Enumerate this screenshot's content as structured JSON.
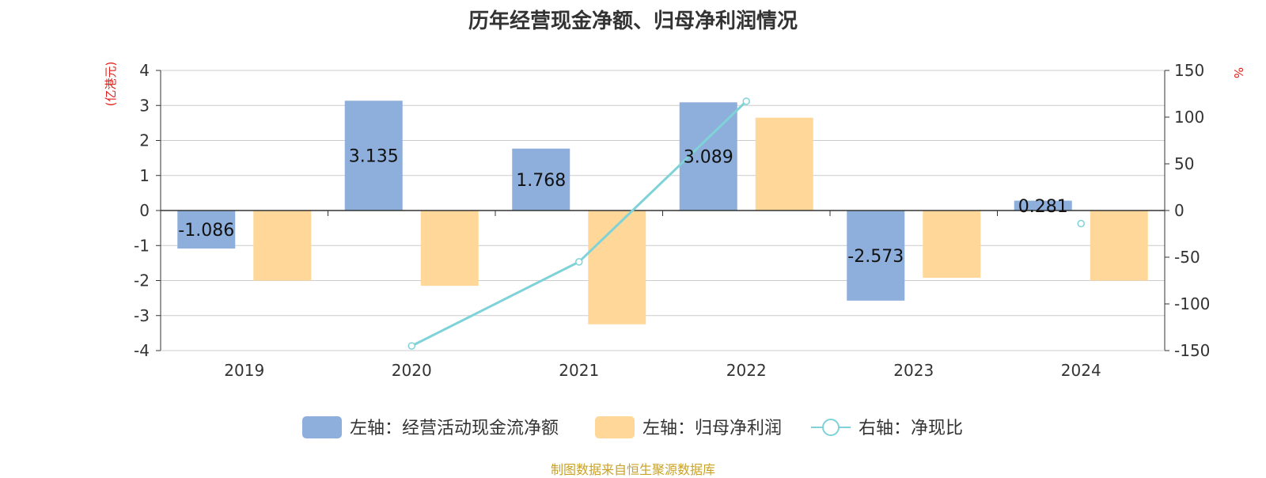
{
  "chart_data": {
    "type": "bar",
    "title": "历年经营现金净额、归母净利润情况",
    "categories": [
      "2019",
      "2020",
      "2021",
      "2022",
      "2023",
      "2024"
    ],
    "left_axis": {
      "unit": "(亿港元)",
      "ylim": [
        -4,
        4
      ],
      "ticks": [
        4,
        3,
        2,
        1,
        0,
        -1,
        -2,
        -3,
        -4
      ]
    },
    "right_axis": {
      "unit": "%",
      "ylim": [
        -150,
        150
      ],
      "ticks": [
        150,
        100,
        50,
        0,
        -50,
        -100,
        -150
      ]
    },
    "series": [
      {
        "name": "左轴：经营活动现金流净额",
        "type": "bar",
        "axis": "left",
        "color": "#8eaedb",
        "values": [
          -1.086,
          3.135,
          1.768,
          3.089,
          -2.573,
          0.281
        ],
        "labels": [
          "-1.086",
          "3.135",
          "1.768",
          "3.089",
          "-2.573",
          "0.281"
        ]
      },
      {
        "name": "左轴：归母净利润",
        "type": "bar",
        "axis": "left",
        "color": "#ffd899",
        "values": [
          -2.0,
          -2.15,
          -3.25,
          2.65,
          -1.92,
          -2.0
        ]
      },
      {
        "name": "右轴：净现比",
        "type": "line",
        "axis": "right",
        "color": "#7fd3d8",
        "values": [
          null,
          -145,
          -55,
          117,
          null,
          -14
        ]
      }
    ],
    "grid": true,
    "legend_position": "bottom"
  },
  "source": "制图数据来自恒生聚源数据库"
}
